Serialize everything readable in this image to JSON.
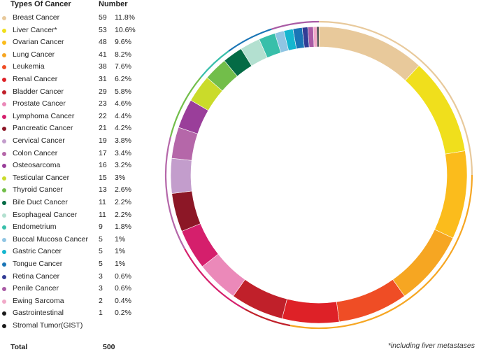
{
  "header": {
    "type_label": "Types Of Cancer",
    "number_label": "Number"
  },
  "total": {
    "label": "Total",
    "value": "500"
  },
  "footnote": "*including liver metastases",
  "chart_data": {
    "type": "donut",
    "total": 500,
    "entries": [
      {
        "name": "Breast Cancer",
        "value": 59,
        "percent": "11.8%",
        "color": "#e8c99b"
      },
      {
        "name": "Liver Cancer*",
        "value": 53,
        "percent": "10.6%",
        "color": "#f0df1c"
      },
      {
        "name": "Ovarian Cancer",
        "value": 48,
        "percent": "9.6%",
        "color": "#fbbc1c"
      },
      {
        "name": "Lung Cancer",
        "value": 41,
        "percent": "8.2%",
        "color": "#f6a622"
      },
      {
        "name": "Leukemia",
        "value": 38,
        "percent": "7.6%",
        "color": "#ef4d25"
      },
      {
        "name": "Renal Cancer",
        "value": 31,
        "percent": "6.2%",
        "color": "#de2127"
      },
      {
        "name": "Bladder Cancer",
        "value": 29,
        "percent": "5.8%",
        "color": "#c0202a"
      },
      {
        "name": "Prostate Cancer",
        "value": 23,
        "percent": "4.6%",
        "color": "#eb89b9"
      },
      {
        "name": "Lymphoma Cancer",
        "value": 22,
        "percent": "4.4%",
        "color": "#d51f6c"
      },
      {
        "name": "Pancreatic Cancer",
        "value": 21,
        "percent": "4.2%",
        "color": "#8c1726"
      },
      {
        "name": "Cervical Cancer",
        "value": 19,
        "percent": "3.8%",
        "color": "#c39dcc"
      },
      {
        "name": "Colon Cancer",
        "value": 17,
        "percent": "3.4%",
        "color": "#b567a9"
      },
      {
        "name": "Osteosarcoma",
        "value": 16,
        "percent": "3.2%",
        "color": "#9a3e9a"
      },
      {
        "name": "Testicular Cancer",
        "value": 15,
        "percent": "3%",
        "color": "#cadb2a"
      },
      {
        "name": "Thyroid Cancer",
        "value": 13,
        "percent": "2.6%",
        "color": "#72be4a"
      },
      {
        "name": "Bile Duct Cancer",
        "value": 11,
        "percent": "2.2%",
        "color": "#046b45"
      },
      {
        "name": "Esophageal Cancer",
        "value": 11,
        "percent": "2.2%",
        "color": "#b3e0d0"
      },
      {
        "name": "Endometrium",
        "value": 9,
        "percent": "1.8%",
        "color": "#38bfaa"
      },
      {
        "name": "Buccal Mucosa Cancer",
        "value": 5,
        "percent": "1%",
        "color": "#90c5e3"
      },
      {
        "name": "Gastric Cancer",
        "value": 5,
        "percent": "1%",
        "color": "#14b6cf"
      },
      {
        "name": "Tongue Cancer",
        "value": 5,
        "percent": "1%",
        "color": "#1a75b6"
      },
      {
        "name": "Retina Cancer",
        "value": 3,
        "percent": "0.6%",
        "color": "#323c95"
      },
      {
        "name": "Penile Cancer",
        "value": 3,
        "percent": "0.6%",
        "color": "#a95ba5"
      },
      {
        "name": "Ewing Sarcoma",
        "value": 2,
        "percent": "0.4%",
        "color": "#f1a9c8"
      },
      {
        "name": "Gastrointestinal",
        "value": 1,
        "percent": "0.2%",
        "color": "#1b1b1b"
      }
    ],
    "extra_legend_item": {
      "name": "Stromal Tumor(GIST)",
      "color": "#1b1b1b"
    },
    "outer_ring_groups": [
      {
        "start": 0,
        "end": 25,
        "color": "#e8c99b"
      },
      {
        "start": 25,
        "end": 53,
        "color": "#f6a622"
      },
      {
        "start": 53,
        "end": 58,
        "color": "#c0202a"
      },
      {
        "start": 58,
        "end": 67,
        "color": "#d51f6c"
      },
      {
        "start": 67,
        "end": 79,
        "color": "#b567a9"
      },
      {
        "start": 79,
        "end": 86,
        "color": "#72be4a"
      },
      {
        "start": 86,
        "end": 90,
        "color": "#38bfaa"
      },
      {
        "start": 90,
        "end": 95,
        "color": "#1a75b6"
      },
      {
        "start": 95,
        "end": 100,
        "color": "#a95ba5"
      }
    ]
  }
}
